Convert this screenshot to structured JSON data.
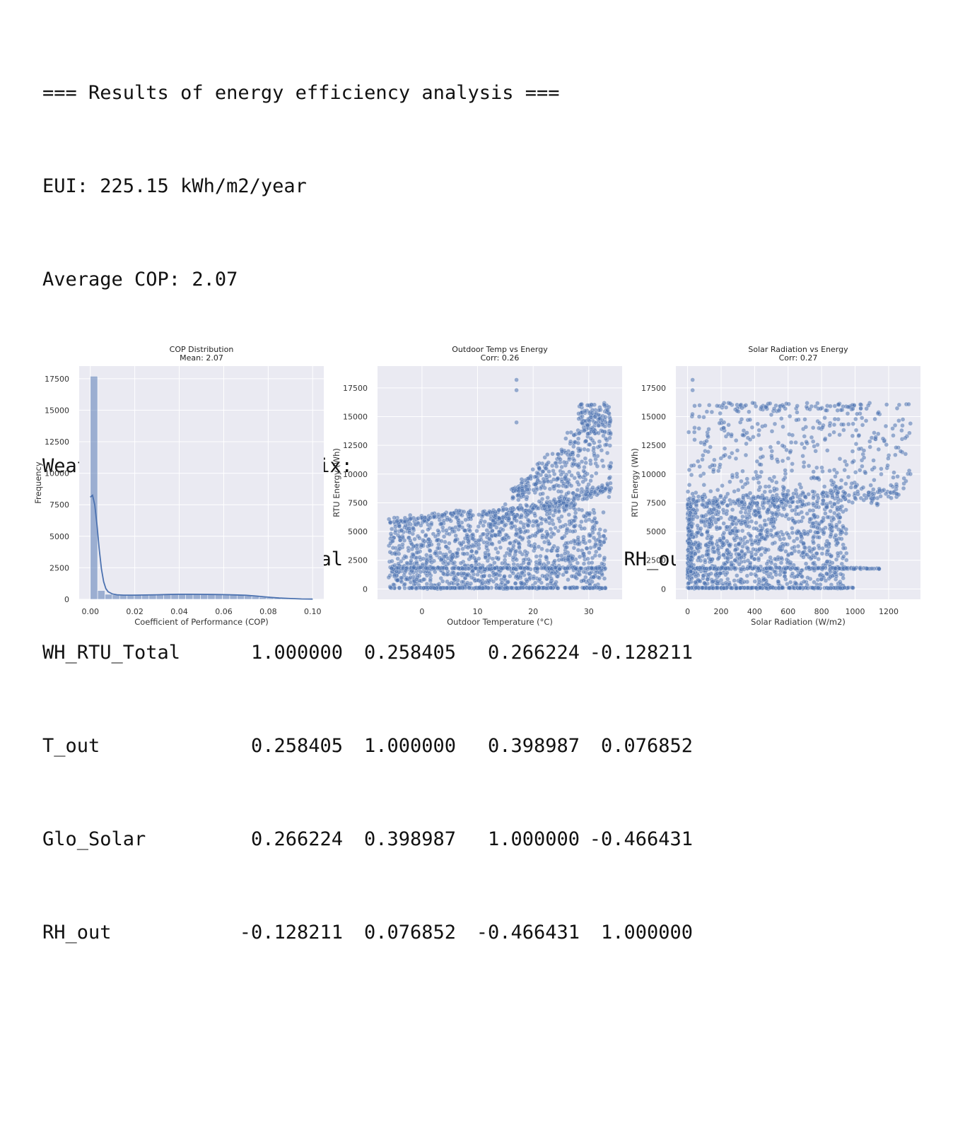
{
  "console": {
    "header": "=== Results of energy efficiency analysis ===",
    "eui": "EUI: 225.15 kWh/m2/year",
    "cop": "Average COP: 2.07",
    "matrix_title": "Weather Correlation Matrix:",
    "columns": [
      "WH_RTU_Total",
      "T_out",
      "Glo_Solar",
      "RH_out"
    ],
    "rows": [
      {
        "label": "WH_RTU_Total",
        "values": [
          "1.000000",
          "0.258405",
          "0.266224",
          "-0.128211"
        ]
      },
      {
        "label": "T_out",
        "values": [
          "0.258405",
          "1.000000",
          "0.398987",
          "0.076852"
        ]
      },
      {
        "label": "Glo_Solar",
        "values": [
          "0.266224",
          "0.398987",
          "1.000000",
          "-0.466431"
        ]
      },
      {
        "label": "RH_out",
        "values": [
          "-0.128211",
          "0.076852",
          "-0.466431",
          "1.000000"
        ]
      }
    ]
  },
  "chart_data": [
    {
      "type": "bar",
      "title": "COP Distribution",
      "subtitle": "Mean: 2.07",
      "xlabel": "Coefficient of Performance (COP)",
      "ylabel": "Frequency",
      "xlim": [
        -0.005,
        0.105
      ],
      "ylim": [
        0,
        18500
      ],
      "xticks": [
        0.0,
        0.02,
        0.04,
        0.06,
        0.08,
        0.1
      ],
      "xtick_labels": [
        "0.00",
        "0.02",
        "0.04",
        "0.06",
        "0.08",
        "0.10"
      ],
      "yticks": [
        0,
        2500,
        5000,
        7500,
        10000,
        12500,
        15000,
        17500
      ],
      "bin_width": 0.0033,
      "bins": [
        0.0,
        0.0033,
        0.0066,
        0.0099,
        0.0132,
        0.0165,
        0.0198,
        0.0231,
        0.0264,
        0.0297,
        0.033,
        0.0363,
        0.0396,
        0.0429,
        0.0462,
        0.0495,
        0.0528,
        0.0561,
        0.0594,
        0.0627,
        0.066,
        0.0693,
        0.0726,
        0.0759,
        0.0792,
        0.0825,
        0.0858,
        0.0891,
        0.0924,
        0.0957,
        0.099
      ],
      "values": [
        17700,
        700,
        400,
        350,
        330,
        330,
        340,
        350,
        360,
        380,
        390,
        400,
        400,
        390,
        380,
        380,
        370,
        360,
        350,
        340,
        320,
        280,
        230,
        170,
        120,
        90,
        60,
        40,
        25,
        15,
        8
      ],
      "kde": {
        "x": [
          0.0,
          0.001,
          0.002,
          0.003,
          0.004,
          0.005,
          0.006,
          0.007,
          0.008,
          0.01,
          0.012,
          0.015,
          0.02,
          0.025,
          0.03,
          0.035,
          0.04,
          0.045,
          0.05,
          0.055,
          0.06,
          0.065,
          0.07,
          0.075,
          0.08,
          0.085,
          0.09,
          0.095,
          0.1
        ],
        "y": [
          8100,
          8250,
          7500,
          5900,
          4000,
          2400,
          1400,
          850,
          600,
          420,
          360,
          330,
          330,
          340,
          360,
          380,
          400,
          400,
          390,
          380,
          370,
          350,
          320,
          250,
          170,
          100,
          60,
          30,
          15
        ]
      }
    },
    {
      "type": "scatter",
      "title": "Outdoor Temp vs Energy",
      "subtitle": "Corr: 0.26",
      "xlabel": "Outdoor Temperature (°C)",
      "ylabel": "RTU Energy (Wh)",
      "xlim": [
        -8,
        36
      ],
      "ylim": [
        -900,
        19400
      ],
      "xticks": [
        0,
        10,
        20,
        30
      ],
      "yticks": [
        0,
        2500,
        5000,
        7500,
        10000,
        12500,
        15000,
        17500
      ],
      "seed": 7
    },
    {
      "type": "scatter",
      "title": "Solar Radiation vs Energy",
      "subtitle": "Corr: 0.27",
      "xlabel": "Solar Radiation (W/m2)",
      "ylabel": "RTU Energy (Wh)",
      "xlim": [
        -70,
        1390
      ],
      "ylim": [
        -900,
        19400
      ],
      "xticks": [
        0,
        200,
        400,
        600,
        800,
        1000,
        1200
      ],
      "yticks": [
        0,
        2500,
        5000,
        7500,
        10000,
        12500,
        15000,
        17500
      ],
      "seed": 13
    }
  ]
}
